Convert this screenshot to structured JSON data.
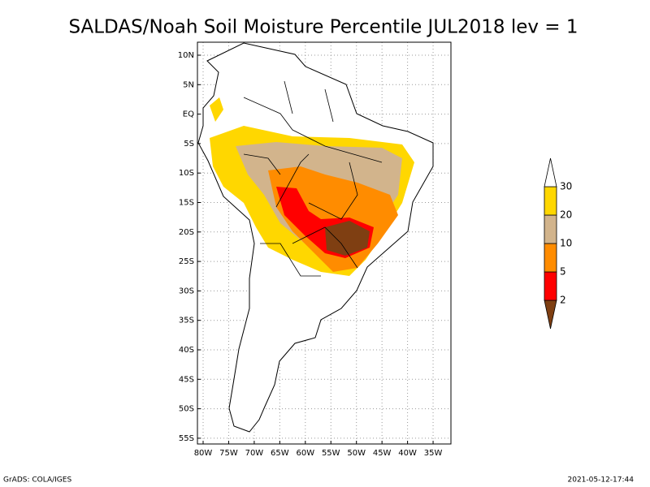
{
  "title": "SALDAS/Noah Soil Moisture Percentile JUL2018 lev = 1",
  "map": {
    "lat_labels": [
      "10N",
      "5N",
      "EQ",
      "5S",
      "10S",
      "15S",
      "20S",
      "25S",
      "30S",
      "35S",
      "40S",
      "45S",
      "50S",
      "55S"
    ],
    "lon_labels": [
      "80W",
      "75W",
      "70W",
      "65W",
      "60W",
      "55W",
      "50W",
      "45W",
      "40W",
      "35W"
    ]
  },
  "colorbar": {
    "levels": [
      2,
      5,
      10,
      20,
      30
    ],
    "colors": [
      "#7f3f12",
      "#ff0000",
      "#ff8c00",
      "#d2b48c",
      "#ffd700",
      "#ffffff"
    ]
  },
  "footer": {
    "left": "GrADS: COLA/IGES",
    "right": "2021-05-12-17:44"
  }
}
